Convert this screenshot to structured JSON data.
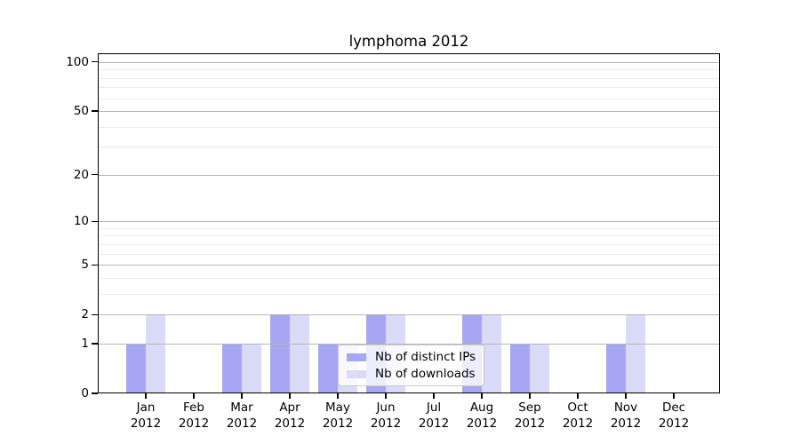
{
  "chart_data": {
    "type": "bar",
    "title": "lymphoma 2012",
    "categories": [
      "Jan",
      "Feb",
      "Mar",
      "Apr",
      "May",
      "Jun",
      "Jul",
      "Aug",
      "Sep",
      "Oct",
      "Nov",
      "Dec"
    ],
    "x_tick_year": "2012",
    "series": [
      {
        "name": "Nb of distinct IPs",
        "color": "#a6a6f2",
        "values": [
          1,
          0,
          1,
          2,
          1,
          2,
          0,
          2,
          1,
          0,
          1,
          0
        ]
      },
      {
        "name": "Nb of downloads",
        "color": "#dadaf9",
        "values": [
          2,
          0,
          1,
          2,
          1,
          2,
          0,
          2,
          1,
          0,
          2,
          0
        ]
      }
    ],
    "yscale": "log1p",
    "ylim": [
      0,
      113
    ],
    "y_major_ticks": [
      0,
      1,
      2,
      5,
      10,
      20,
      50,
      100
    ],
    "y_minor_ticks": [
      3,
      4,
      6,
      7,
      8,
      9,
      30,
      40,
      60,
      70,
      80,
      90
    ],
    "grid": true,
    "legend_position": "lower center"
  }
}
